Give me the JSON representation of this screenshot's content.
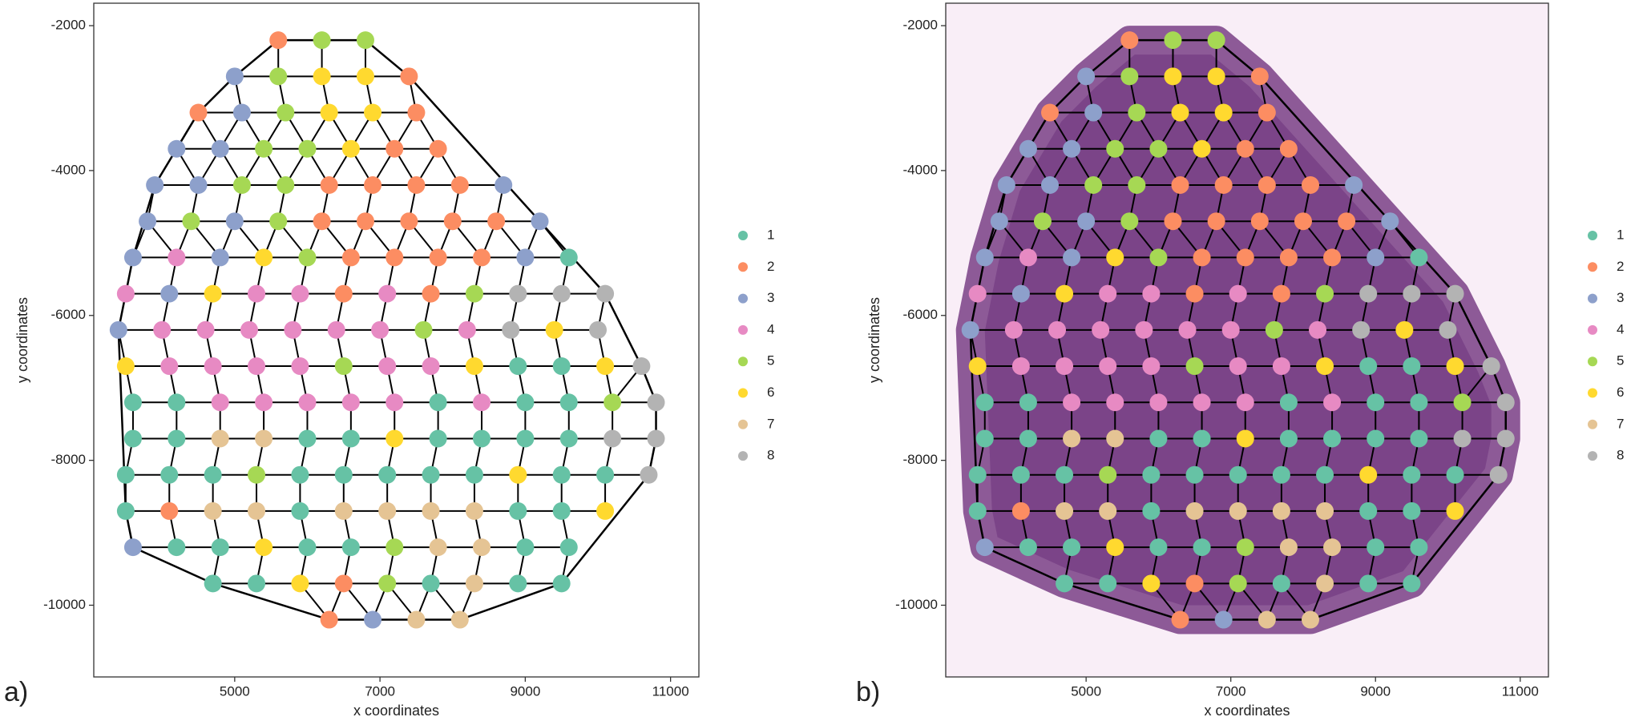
{
  "chart_data": [
    {
      "type": "scatter",
      "panel_label": "a)",
      "xlabel": "x coordinates",
      "ylabel": "y coordinates",
      "xlim": [
        3060,
        11390
      ],
      "ylim": [
        -10990,
        -1690
      ],
      "xticks": [
        5000,
        7000,
        9000,
        11000
      ],
      "yticks": [
        -2000,
        -4000,
        -6000,
        -8000,
        -10000
      ],
      "tissue_image": false,
      "series": [
        {
          "name": "1",
          "color": "#66c2a5",
          "x": [
            9600,
            8900,
            9500,
            3600,
            4200,
            7800,
            9000,
            9600,
            3600,
            4200,
            6000,
            6600,
            7800,
            8400,
            9000,
            9600,
            3500,
            4100,
            4700,
            5900,
            6500,
            7100,
            7700,
            8300,
            9500,
            10100,
            3500,
            5900,
            8900,
            9500,
            4200,
            4800,
            6000,
            6600,
            9000,
            9600,
            4700,
            5300,
            7700,
            8900,
            9500
          ],
          "values": [
            -5200,
            -6700,
            -6700,
            -7200,
            -7200,
            -7200,
            -7200,
            -7200,
            -7700,
            -7700,
            -7700,
            -7700,
            -7700,
            -7700,
            -7700,
            -7700,
            -8200,
            -8200,
            -8200,
            -8200,
            -8200,
            -8200,
            -8200,
            -8200,
            -8200,
            -8200,
            -8700,
            -8700,
            -8700,
            -8700,
            -9200,
            -9200,
            -9200,
            -9200,
            -9200,
            -9200,
            -9700,
            -9700,
            -9700,
            -9700,
            -9700
          ]
        },
        {
          "name": "2",
          "color": "#fc8d62",
          "x": [
            5600,
            7400,
            4500,
            7500,
            7200,
            7800,
            6300,
            6900,
            7500,
            8100,
            6200,
            6800,
            7400,
            8000,
            8600,
            6600,
            7200,
            7800,
            8400,
            6500,
            7700,
            4100,
            6500,
            6300
          ],
          "values": [
            -2200,
            -2700,
            -3200,
            -3200,
            -3700,
            -3700,
            -4200,
            -4200,
            -4200,
            -4200,
            -4700,
            -4700,
            -4700,
            -4700,
            -4700,
            -5200,
            -5200,
            -5200,
            -5200,
            -5700,
            -5700,
            -8700,
            -9700,
            -10200
          ]
        },
        {
          "name": "3",
          "color": "#8da0cb",
          "x": [
            5000,
            5100,
            4200,
            4800,
            3900,
            4500,
            8700,
            3800,
            5000,
            9200,
            3600,
            4800,
            9000,
            4100,
            3400,
            3600,
            6900
          ],
          "values": [
            -2700,
            -3200,
            -3700,
            -3700,
            -4200,
            -4200,
            -4200,
            -4700,
            -4700,
            -4700,
            -5200,
            -5200,
            -5200,
            -5700,
            -6200,
            -9200,
            -10200
          ]
        },
        {
          "name": "4",
          "color": "#e78ac3",
          "x": [
            4200,
            3500,
            5300,
            5900,
            7100,
            4000,
            4600,
            5200,
            5800,
            6400,
            7000,
            8200,
            4100,
            4700,
            5300,
            5900,
            7100,
            7700,
            4800,
            5400,
            6000,
            6600,
            7200,
            8400
          ],
          "values": [
            -5200,
            -5700,
            -5700,
            -5700,
            -5700,
            -6200,
            -6200,
            -6200,
            -6200,
            -6200,
            -6200,
            -6200,
            -6700,
            -6700,
            -6700,
            -6700,
            -6700,
            -6700,
            -7200,
            -7200,
            -7200,
            -7200,
            -7200,
            -7200
          ]
        },
        {
          "name": "5",
          "color": "#a6d854",
          "x": [
            6200,
            6800,
            5600,
            5700,
            5400,
            6000,
            5100,
            5700,
            4400,
            5600,
            6000,
            8300,
            7600,
            6500,
            10200,
            5300,
            7200,
            7100
          ],
          "values": [
            -2200,
            -2200,
            -2700,
            -3200,
            -3700,
            -3700,
            -4200,
            -4200,
            -4700,
            -4700,
            -5200,
            -5700,
            -6200,
            -6700,
            -7200,
            -8200,
            -9200,
            -9700
          ]
        },
        {
          "name": "6",
          "color": "#ffd92f",
          "x": [
            6200,
            6800,
            6300,
            6900,
            6600,
            5400,
            4700,
            9400,
            3500,
            8300,
            10100,
            7200,
            8900,
            10100,
            5400,
            5900
          ],
          "values": [
            -2700,
            -2700,
            -3200,
            -3200,
            -3700,
            -5200,
            -5700,
            -6200,
            -6700,
            -6700,
            -6700,
            -7700,
            -8200,
            -8700,
            -9200,
            -9700
          ]
        },
        {
          "name": "7",
          "color": "#e5c494",
          "x": [
            4800,
            5400,
            4700,
            5300,
            6500,
            7100,
            7700,
            8300,
            7800,
            8400,
            8300,
            7500,
            8100
          ],
          "values": [
            -7700,
            -7700,
            -8700,
            -8700,
            -8700,
            -8700,
            -8700,
            -8700,
            -9200,
            -9200,
            -9700,
            -10200,
            -10200
          ]
        },
        {
          "name": "8",
          "color": "#b3b3b3",
          "x": [
            8900,
            9500,
            10100,
            8800,
            10000,
            10600,
            10800,
            10200,
            10800,
            10700
          ],
          "values": [
            -5700,
            -5700,
            -5700,
            -6200,
            -6200,
            -6700,
            -7200,
            -7700,
            -7700,
            -8200
          ]
        }
      ]
    },
    {
      "type": "scatter",
      "panel_label": "b)",
      "xlabel": "x coordinates",
      "ylabel": "y coordinates",
      "xlim": [
        3060,
        11390
      ],
      "ylim": [
        -10990,
        -1690
      ],
      "xticks": [
        5000,
        7000,
        9000,
        11000
      ],
      "yticks": [
        -2000,
        -4000,
        -6000,
        -8000,
        -10000
      ],
      "tissue_image": true,
      "series": [
        {
          "name": "1",
          "color": "#66c2a5",
          "x": [
            9600,
            8900,
            9500,
            3600,
            4200,
            7800,
            9000,
            9600,
            3600,
            4200,
            6000,
            6600,
            7800,
            8400,
            9000,
            9600,
            3500,
            4100,
            4700,
            5900,
            6500,
            7100,
            7700,
            8300,
            9500,
            10100,
            3500,
            5900,
            8900,
            9500,
            4200,
            4800,
            6000,
            6600,
            9000,
            9600,
            4700,
            5300,
            7700,
            8900,
            9500
          ],
          "values": [
            -5200,
            -6700,
            -6700,
            -7200,
            -7200,
            -7200,
            -7200,
            -7200,
            -7700,
            -7700,
            -7700,
            -7700,
            -7700,
            -7700,
            -7700,
            -7700,
            -8200,
            -8200,
            -8200,
            -8200,
            -8200,
            -8200,
            -8200,
            -8200,
            -8200,
            -8200,
            -8700,
            -8700,
            -8700,
            -8700,
            -9200,
            -9200,
            -9200,
            -9200,
            -9200,
            -9200,
            -9700,
            -9700,
            -9700,
            -9700,
            -9700
          ]
        },
        {
          "name": "2",
          "color": "#fc8d62",
          "x": [
            5600,
            7400,
            4500,
            7500,
            7200,
            7800,
            6300,
            6900,
            7500,
            8100,
            6200,
            6800,
            7400,
            8000,
            8600,
            6600,
            7200,
            7800,
            8400,
            6500,
            7700,
            4100,
            6500,
            6300
          ],
          "values": [
            -2200,
            -2700,
            -3200,
            -3200,
            -3700,
            -3700,
            -4200,
            -4200,
            -4200,
            -4200,
            -4700,
            -4700,
            -4700,
            -4700,
            -4700,
            -5200,
            -5200,
            -5200,
            -5200,
            -5700,
            -5700,
            -8700,
            -9700,
            -10200
          ]
        },
        {
          "name": "3",
          "color": "#8da0cb",
          "x": [
            5000,
            5100,
            4200,
            4800,
            3900,
            4500,
            8700,
            3800,
            5000,
            9200,
            3600,
            4800,
            9000,
            4100,
            3400,
            3600,
            6900
          ],
          "values": [
            -2700,
            -3200,
            -3700,
            -3700,
            -4200,
            -4200,
            -4200,
            -4700,
            -4700,
            -4700,
            -5200,
            -5200,
            -5200,
            -5700,
            -6200,
            -9200,
            -10200
          ]
        },
        {
          "name": "4",
          "color": "#e78ac3",
          "x": [
            4200,
            3500,
            5300,
            5900,
            7100,
            4000,
            4600,
            5200,
            5800,
            6400,
            7000,
            8200,
            4100,
            4700,
            5300,
            5900,
            7100,
            7700,
            4800,
            5400,
            6000,
            6600,
            7200,
            8400
          ],
          "values": [
            -5200,
            -5700,
            -5700,
            -5700,
            -5700,
            -6200,
            -6200,
            -6200,
            -6200,
            -6200,
            -6200,
            -6200,
            -6700,
            -6700,
            -6700,
            -6700,
            -6700,
            -6700,
            -7200,
            -7200,
            -7200,
            -7200,
            -7200,
            -7200
          ]
        },
        {
          "name": "5",
          "color": "#a6d854",
          "x": [
            6200,
            6800,
            5600,
            5700,
            5400,
            6000,
            5100,
            5700,
            4400,
            5600,
            6000,
            8300,
            7600,
            6500,
            10200,
            5300,
            7200,
            7100
          ],
          "values": [
            -2200,
            -2200,
            -2700,
            -3200,
            -3700,
            -3700,
            -4200,
            -4200,
            -4700,
            -4700,
            -5200,
            -5700,
            -6200,
            -6700,
            -7200,
            -8200,
            -9200,
            -9700
          ]
        },
        {
          "name": "6",
          "color": "#ffd92f",
          "x": [
            6200,
            6800,
            6300,
            6900,
            6600,
            5400,
            4700,
            9400,
            3500,
            8300,
            10100,
            7200,
            8900,
            10100,
            5400,
            5900
          ],
          "values": [
            -2700,
            -2700,
            -3200,
            -3200,
            -3700,
            -5200,
            -5700,
            -6200,
            -6700,
            -6700,
            -6700,
            -7700,
            -8200,
            -8700,
            -9200,
            -9700
          ]
        },
        {
          "name": "7",
          "color": "#e5c494",
          "x": [
            4800,
            5400,
            4700,
            5300,
            6500,
            7100,
            7700,
            8300,
            7800,
            8400,
            8300,
            7500,
            8100
          ],
          "values": [
            -7700,
            -7700,
            -8700,
            -8700,
            -8700,
            -8700,
            -8700,
            -8700,
            -9200,
            -9200,
            -9700,
            -10200,
            -10200
          ]
        },
        {
          "name": "8",
          "color": "#b3b3b3",
          "x": [
            8900,
            9500,
            10100,
            8800,
            10000,
            10600,
            10800,
            10200,
            10800,
            10700
          ],
          "values": [
            -5700,
            -5700,
            -5700,
            -6200,
            -6200,
            -6700,
            -7200,
            -7700,
            -7700,
            -8200
          ]
        }
      ]
    }
  ]
}
